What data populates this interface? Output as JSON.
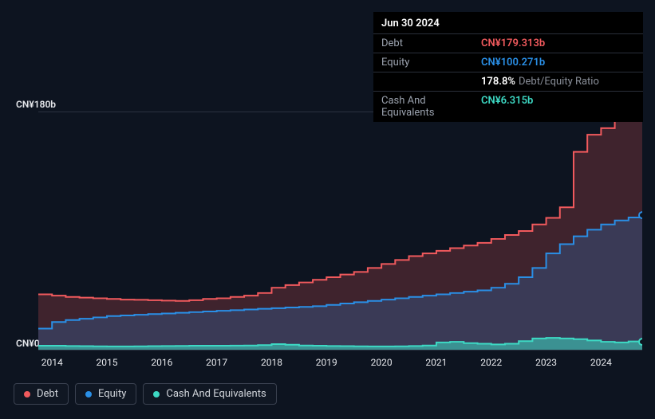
{
  "tooltip": {
    "date": "Jun 30 2024",
    "rows": [
      {
        "label": "Debt",
        "value": "CN¥179.313b",
        "color": "#f15a5d"
      },
      {
        "label": "Equity",
        "value": "CN¥100.271b",
        "color": "#2a8fe6"
      },
      {
        "label": "",
        "value": "178.8%",
        "suffix": "Debt/Equity Ratio",
        "color": "#ffffff"
      },
      {
        "label": "Cash And Equivalents",
        "value": "CN¥6.315b",
        "color": "#3dd9c4"
      }
    ]
  },
  "yAxis": {
    "topLabel": "CN¥180b",
    "bottomLabel": "CN¥0",
    "max": 180
  },
  "xAxis": {
    "labels": [
      "2014",
      "2015",
      "2016",
      "2017",
      "2018",
      "2019",
      "2020",
      "2021",
      "2022",
      "2023",
      "2024"
    ],
    "domain": [
      2013.75,
      2024.75
    ]
  },
  "series": {
    "debt": {
      "name": "Debt",
      "color": "#f15a5d",
      "fillOpacity": 0.22,
      "points": [
        [
          2013.75,
          42
        ],
        [
          2014.0,
          41
        ],
        [
          2014.25,
          40
        ],
        [
          2014.5,
          39.5
        ],
        [
          2014.75,
          39
        ],
        [
          2015.0,
          38.5
        ],
        [
          2015.25,
          38
        ],
        [
          2015.5,
          37.8
        ],
        [
          2015.75,
          37.5
        ],
        [
          2016.0,
          37.2
        ],
        [
          2016.25,
          37
        ],
        [
          2016.5,
          37.5
        ],
        [
          2016.75,
          38.5
        ],
        [
          2017.0,
          39
        ],
        [
          2017.25,
          40
        ],
        [
          2017.5,
          41
        ],
        [
          2017.75,
          43
        ],
        [
          2018.0,
          47
        ],
        [
          2018.25,
          49
        ],
        [
          2018.5,
          51
        ],
        [
          2018.75,
          53
        ],
        [
          2019.0,
          55
        ],
        [
          2019.25,
          57
        ],
        [
          2019.5,
          59
        ],
        [
          2019.75,
          62
        ],
        [
          2020.0,
          65
        ],
        [
          2020.25,
          68
        ],
        [
          2020.5,
          71
        ],
        [
          2020.75,
          73
        ],
        [
          2021.0,
          75
        ],
        [
          2021.25,
          77
        ],
        [
          2021.5,
          79
        ],
        [
          2021.75,
          81
        ],
        [
          2022.0,
          84
        ],
        [
          2022.25,
          87
        ],
        [
          2022.5,
          90
        ],
        [
          2022.75,
          95
        ],
        [
          2023.0,
          100
        ],
        [
          2023.25,
          108
        ],
        [
          2023.5,
          150
        ],
        [
          2023.75,
          163
        ],
        [
          2024.0,
          168
        ],
        [
          2024.25,
          175
        ],
        [
          2024.5,
          179.3
        ],
        [
          2024.75,
          180
        ]
      ]
    },
    "equity": {
      "name": "Equity",
      "color": "#2a8fe6",
      "fillOpacity": 0.22,
      "points": [
        [
          2013.75,
          16
        ],
        [
          2014.0,
          21
        ],
        [
          2014.25,
          22.5
        ],
        [
          2014.5,
          23.5
        ],
        [
          2014.75,
          24.5
        ],
        [
          2015.0,
          25.5
        ],
        [
          2015.25,
          26
        ],
        [
          2015.5,
          26.5
        ],
        [
          2015.75,
          27
        ],
        [
          2016.0,
          27.5
        ],
        [
          2016.25,
          28
        ],
        [
          2016.5,
          28.5
        ],
        [
          2016.75,
          29
        ],
        [
          2017.0,
          29.5
        ],
        [
          2017.25,
          30
        ],
        [
          2017.5,
          30.5
        ],
        [
          2017.75,
          31
        ],
        [
          2018.0,
          31.5
        ],
        [
          2018.25,
          32
        ],
        [
          2018.5,
          32.5
        ],
        [
          2018.75,
          33
        ],
        [
          2019.0,
          34
        ],
        [
          2019.25,
          35
        ],
        [
          2019.5,
          36
        ],
        [
          2019.75,
          37
        ],
        [
          2020.0,
          38
        ],
        [
          2020.25,
          39
        ],
        [
          2020.5,
          40
        ],
        [
          2020.75,
          41
        ],
        [
          2021.0,
          42
        ],
        [
          2021.25,
          43
        ],
        [
          2021.5,
          44
        ],
        [
          2021.75,
          45
        ],
        [
          2022.0,
          47
        ],
        [
          2022.25,
          50
        ],
        [
          2022.5,
          55
        ],
        [
          2022.75,
          62
        ],
        [
          2023.0,
          73
        ],
        [
          2023.25,
          80
        ],
        [
          2023.5,
          86
        ],
        [
          2023.75,
          91
        ],
        [
          2024.0,
          95
        ],
        [
          2024.25,
          98
        ],
        [
          2024.5,
          100.3
        ],
        [
          2024.75,
          102
        ]
      ]
    },
    "cash": {
      "name": "Cash And Equivalents",
      "color": "#3dd9c4",
      "fillOpacity": 0.55,
      "points": [
        [
          2013.75,
          3
        ],
        [
          2014.0,
          3
        ],
        [
          2014.25,
          2.8
        ],
        [
          2014.5,
          2.7
        ],
        [
          2014.75,
          2.6
        ],
        [
          2015.0,
          2.5
        ],
        [
          2015.25,
          2.5
        ],
        [
          2015.5,
          2.6
        ],
        [
          2015.75,
          2.7
        ],
        [
          2016.0,
          2.8
        ],
        [
          2016.25,
          2.9
        ],
        [
          2016.5,
          3.0
        ],
        [
          2016.75,
          3.0
        ],
        [
          2017.0,
          3.0
        ],
        [
          2017.25,
          3.1
        ],
        [
          2017.5,
          3.2
        ],
        [
          2017.75,
          3.5
        ],
        [
          2018.0,
          4.2
        ],
        [
          2018.25,
          3.8
        ],
        [
          2018.5,
          3.2
        ],
        [
          2018.75,
          3.0
        ],
        [
          2019.0,
          2.8
        ],
        [
          2019.25,
          2.7
        ],
        [
          2019.5,
          2.6
        ],
        [
          2019.75,
          2.5
        ],
        [
          2020.0,
          2.5
        ],
        [
          2020.25,
          2.6
        ],
        [
          2020.5,
          2.8
        ],
        [
          2020.75,
          3.2
        ],
        [
          2021.0,
          5.5
        ],
        [
          2021.25,
          6.0
        ],
        [
          2021.5,
          5.0
        ],
        [
          2021.75,
          4.5
        ],
        [
          2022.0,
          4.0
        ],
        [
          2022.25,
          4.5
        ],
        [
          2022.5,
          6.5
        ],
        [
          2022.75,
          8.5
        ],
        [
          2023.0,
          9.0
        ],
        [
          2023.25,
          8.5
        ],
        [
          2023.5,
          8.0
        ],
        [
          2023.75,
          7.0
        ],
        [
          2024.0,
          6.0
        ],
        [
          2024.25,
          5.5
        ],
        [
          2024.5,
          6.3
        ],
        [
          2024.75,
          6.0
        ]
      ]
    }
  },
  "legend": [
    {
      "label": "Debt",
      "color": "#f15a5d"
    },
    {
      "label": "Equity",
      "color": "#2a8fe6"
    },
    {
      "label": "Cash And Equivalents",
      "color": "#3dd9c4"
    }
  ]
}
